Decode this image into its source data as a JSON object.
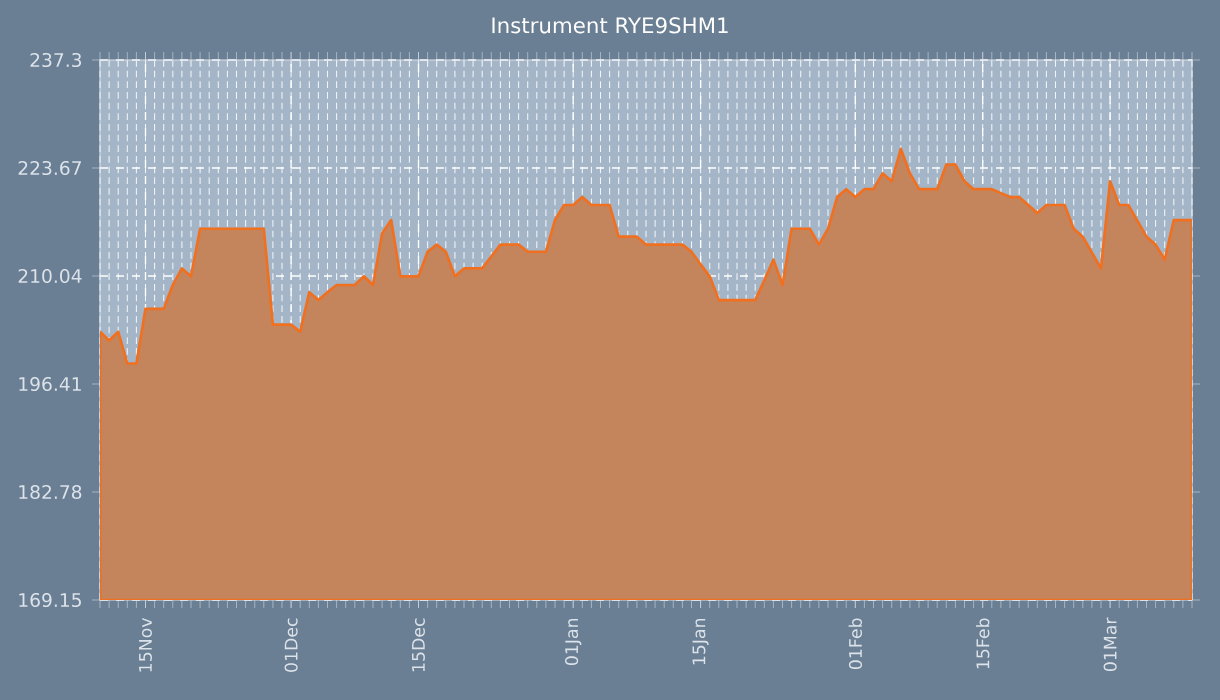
{
  "chart_data": {
    "type": "area",
    "title": "Instrument RYE9SHM1",
    "categories": [
      null,
      null,
      null,
      null,
      null,
      "15Nov",
      null,
      null,
      null,
      null,
      null,
      null,
      null,
      null,
      null,
      null,
      null,
      null,
      null,
      null,
      null,
      "01Dec",
      null,
      null,
      null,
      null,
      null,
      null,
      null,
      null,
      null,
      null,
      null,
      null,
      null,
      "15Dec",
      null,
      null,
      null,
      null,
      null,
      null,
      null,
      null,
      null,
      null,
      null,
      null,
      null,
      null,
      null,
      null,
      "01Jan",
      null,
      null,
      null,
      null,
      null,
      null,
      null,
      null,
      null,
      null,
      null,
      null,
      null,
      "15Jan",
      null,
      null,
      null,
      null,
      null,
      null,
      null,
      null,
      null,
      null,
      null,
      null,
      null,
      null,
      null,
      null,
      "01Feb",
      null,
      null,
      null,
      null,
      null,
      null,
      null,
      null,
      null,
      null,
      null,
      null,
      null,
      "15Feb",
      null,
      null,
      null,
      null,
      null,
      null,
      null,
      null,
      null,
      null,
      null,
      null,
      null,
      "01Mar",
      null,
      null,
      null,
      null,
      null,
      null,
      null,
      null,
      null
    ],
    "values": [
      203.0,
      201.9,
      203.0,
      199.0,
      199.0,
      205.9,
      205.9,
      205.9,
      208.9,
      211.0,
      210.0,
      216.0,
      216.0,
      216.0,
      216.0,
      216.0,
      216.0,
      216.0,
      216.0,
      203.9,
      203.9,
      203.9,
      203.0,
      208.0,
      207.0,
      208.0,
      208.9,
      208.9,
      208.9,
      210.0,
      208.9,
      215.4,
      217.1,
      210.0,
      210.0,
      210.0,
      213.1,
      214.0,
      213.1,
      210.0,
      211.0,
      211.0,
      211.0,
      212.5,
      214.0,
      214.0,
      214.0,
      213.1,
      213.1,
      213.1,
      217.1,
      219.0,
      219.0,
      220.0,
      219.0,
      219.0,
      219.0,
      215.0,
      215.0,
      215.0,
      214.0,
      214.0,
      214.0,
      214.0,
      214.0,
      213.1,
      211.5,
      210.0,
      207.0,
      207.0,
      207.0,
      207.0,
      207.0,
      209.5,
      212.1,
      208.9,
      216.0,
      216.0,
      216.0,
      214.0,
      216.0,
      220.0,
      221.0,
      220.0,
      221.0,
      221.0,
      223.0,
      222.0,
      226.1,
      223.0,
      221.0,
      221.0,
      221.0,
      224.1,
      224.1,
      222.0,
      221.0,
      221.0,
      221.0,
      220.5,
      220.0,
      220.0,
      219.0,
      218.0,
      219.0,
      219.0,
      219.0,
      216.0,
      215.0,
      213.0,
      211.0,
      222.0,
      219.0,
      219.0,
      217.0,
      215.0,
      214.0,
      212.1,
      217.1,
      217.1,
      217.1
    ],
    "color": "#f07020",
    "ylim": [
      169.15,
      237.3
    ],
    "yticks": [
      169.15,
      182.78,
      196.41,
      210.04,
      223.67,
      237.3
    ],
    "grid": true
  }
}
